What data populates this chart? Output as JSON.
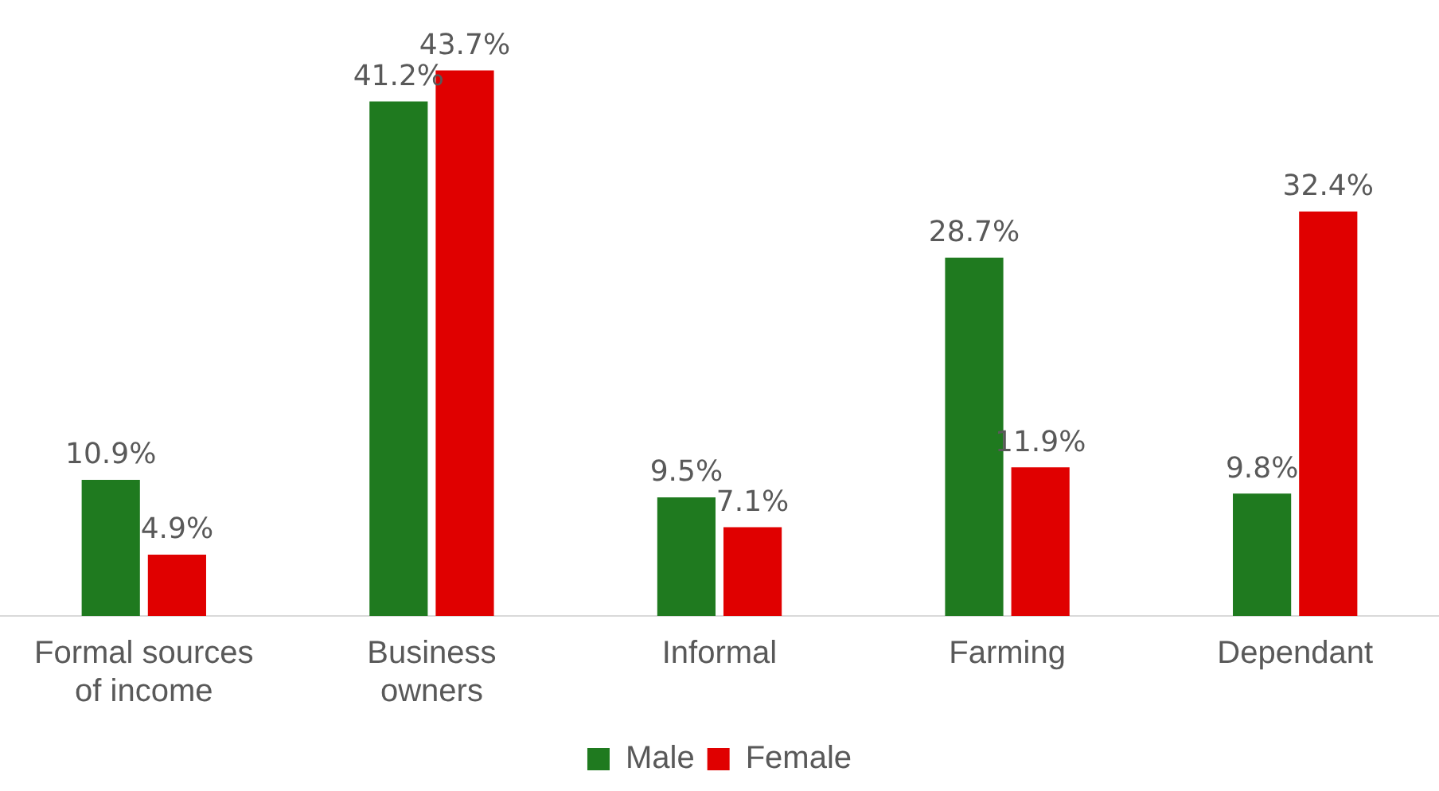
{
  "chart_data": {
    "type": "bar",
    "categories": [
      "Formal sources of income",
      "Business owners",
      "Informal",
      "Farming",
      "Dependant"
    ],
    "series": [
      {
        "name": "Male",
        "color": "#1f7a1f",
        "values": [
          10.9,
          41.2,
          9.5,
          28.7,
          9.8
        ],
        "value_labels": [
          "10.9%",
          "41.2%",
          "9.5%",
          "28.7%",
          "9.8%"
        ]
      },
      {
        "name": "Female",
        "color": "#e00000",
        "values": [
          4.9,
          43.7,
          7.1,
          11.9,
          32.4
        ],
        "value_labels": [
          "4.9%",
          "43.7%",
          "7.1%",
          "11.9%",
          "32.4%"
        ]
      }
    ],
    "tick_labels": "x",
    "grid": false,
    "legend": "bottom"
  }
}
